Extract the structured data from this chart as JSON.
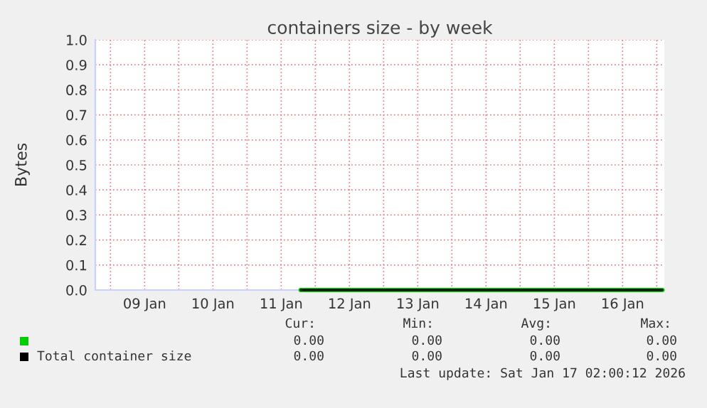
{
  "chart_data": {
    "type": "line",
    "title": "containers size - by week",
    "ylabel": "Bytes",
    "xlim": [
      "2026-01-08T18:40",
      "2026-01-17T02:40"
    ],
    "xticks": [
      {
        "value": "2026-01-09T00:00",
        "label": null
      },
      {
        "value": "2026-01-09T12:00",
        "label": "09 Jan"
      },
      {
        "value": "2026-01-10T00:00",
        "label": null
      },
      {
        "value": "2026-01-10T12:00",
        "label": "10 Jan"
      },
      {
        "value": "2026-01-11T00:00",
        "label": null
      },
      {
        "value": "2026-01-11T12:00",
        "label": "11 Jan"
      },
      {
        "value": "2026-01-12T00:00",
        "label": null
      },
      {
        "value": "2026-01-12T12:00",
        "label": "12 Jan"
      },
      {
        "value": "2026-01-13T00:00",
        "label": null
      },
      {
        "value": "2026-01-13T12:00",
        "label": "13 Jan"
      },
      {
        "value": "2026-01-14T00:00",
        "label": null
      },
      {
        "value": "2026-01-14T12:00",
        "label": "14 Jan"
      },
      {
        "value": "2026-01-15T00:00",
        "label": null
      },
      {
        "value": "2026-01-15T12:00",
        "label": "15 Jan"
      },
      {
        "value": "2026-01-16T00:00",
        "label": null
      },
      {
        "value": "2026-01-16T12:00",
        "label": "16 Jan"
      },
      {
        "value": "2026-01-17T00:00",
        "label": null
      }
    ],
    "ylim": [
      0,
      1
    ],
    "yticks": [
      {
        "value": 0,
        "label": "0.0"
      },
      0.1,
      0.2,
      0.3,
      0.4,
      0.5,
      0.6,
      0.7,
      0.8,
      0.9,
      {
        "value": 1,
        "label": "1.0"
      }
    ],
    "grid": true,
    "legend": "bottom",
    "series": [
      {
        "color": "#00cc00",
        "x": [
          "2026-01-11T18:50",
          "2026-01-17T02:00"
        ],
        "values": [
          0,
          0
        ]
      },
      {
        "name": "Total container size",
        "color": "#000000",
        "x": [
          "2026-01-11T18:50",
          "2026-01-17T02:00"
        ],
        "values": [
          0,
          0
        ]
      }
    ],
    "annotations": [
      "Cur:",
      "Min:",
      "Avg:",
      "Max:",
      "0.00",
      "0.00",
      "0.00",
      "0.00",
      "0.00",
      "0.00",
      "0.00",
      "0.00",
      "Last update: Sat Jan 17 02:00:12 2026"
    ]
  }
}
